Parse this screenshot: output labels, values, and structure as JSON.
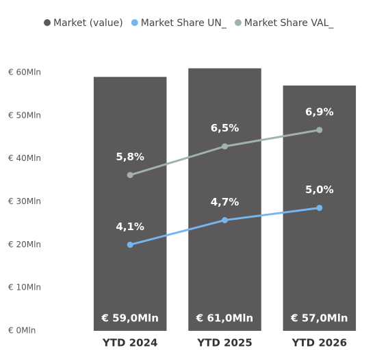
{
  "chart_data": {
    "type": "bar",
    "categories": [
      "YTD 2024",
      "YTD 2025",
      "YTD 2026"
    ],
    "ylim": [
      0,
      60
    ],
    "yticks": [
      {
        "value": 0,
        "label": "€ 0Mln"
      },
      {
        "value": 10,
        "label": "€ 10Mln"
      },
      {
        "value": 20,
        "label": "€ 20Mln"
      },
      {
        "value": 30,
        "label": "€ 30Mln"
      },
      {
        "value": 40,
        "label": "€ 40Mln"
      },
      {
        "value": 50,
        "label": "€ 50Mln"
      },
      {
        "value": 60,
        "label": "€ 60Mln"
      }
    ],
    "y2lim": [
      2,
      8.3
    ],
    "series": [
      {
        "name": "Market (value)",
        "type": "bar",
        "color": "#5b5959",
        "values": [
          59,
          61,
          57
        ],
        "value_labels": [
          "€ 59,0Mln",
          "€ 61,0Mln",
          "€ 57,0Mln"
        ]
      },
      {
        "name": "Market Share UN_",
        "type": "line",
        "axis": "y2",
        "color": "#74b6f0",
        "values": [
          4.1,
          4.7,
          5.0
        ],
        "value_labels": [
          "4,1%",
          "4,7%",
          "5,0%"
        ]
      },
      {
        "name": "Market Share VAL_",
        "type": "line",
        "axis": "y2",
        "color": "#9fb3ab",
        "values": [
          5.8,
          6.5,
          6.9
        ],
        "value_labels": [
          "5,8%",
          "6,5%",
          "6,9%"
        ]
      }
    ]
  }
}
